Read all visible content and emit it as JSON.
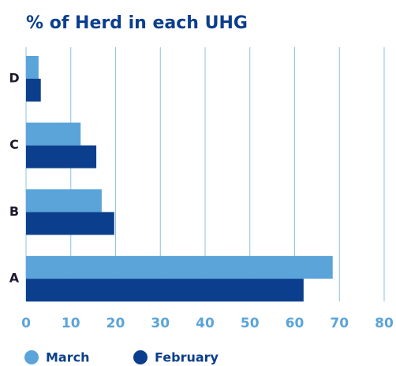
{
  "chart_data": {
    "type": "hbar",
    "title": "% of Herd in each UHG",
    "categories": [
      "D",
      "C",
      "B",
      "A"
    ],
    "series": [
      {
        "name": "March",
        "color": "#5ba4d9",
        "values": [
          2.8,
          12.2,
          16.9,
          68.5
        ]
      },
      {
        "name": "February",
        "color": "#0b3f8d",
        "values": [
          3.3,
          15.7,
          19.7,
          62
        ]
      }
    ],
    "xlim": [
      0,
      80
    ],
    "xticks": [
      0,
      10,
      20,
      30,
      40,
      50,
      60,
      70,
      80
    ],
    "grid": true
  }
}
